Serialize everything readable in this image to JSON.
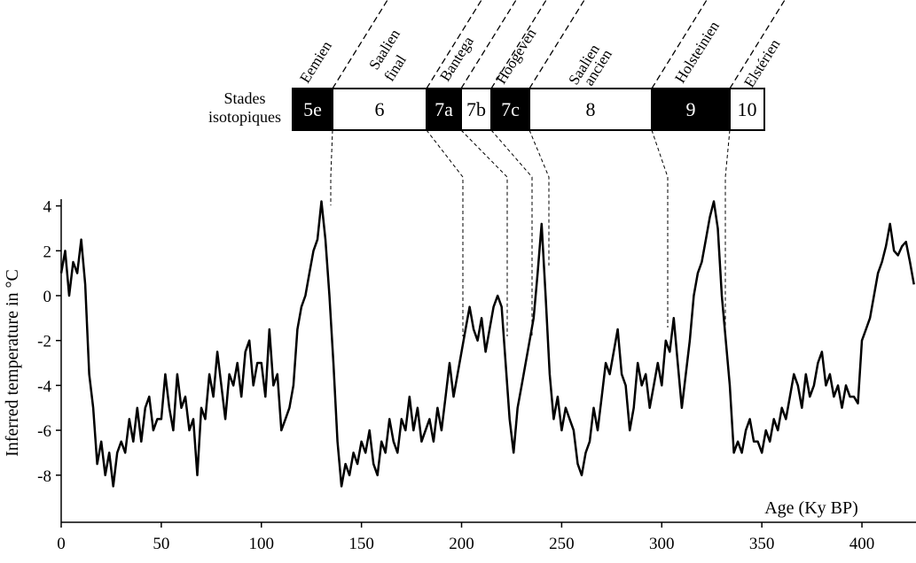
{
  "chart_data": {
    "type": "line",
    "y_label": "Inferred temperature in °C",
    "x_label": "Age (Ky BP)",
    "xlim": [
      0,
      427
    ],
    "xticks": [
      0,
      50,
      100,
      150,
      200,
      250,
      300,
      350,
      400
    ],
    "ylim": [
      -10.1,
      4.3
    ],
    "yticks": [
      4,
      2,
      0,
      -2,
      -4,
      -6,
      -8
    ],
    "grid": false,
    "x": [
      0,
      2,
      4,
      6,
      8,
      10,
      12,
      14,
      16,
      18,
      20,
      22,
      24,
      26,
      28,
      30,
      32,
      34,
      36,
      38,
      40,
      42,
      44,
      46,
      48,
      50,
      52,
      54,
      56,
      58,
      60,
      62,
      64,
      66,
      68,
      70,
      72,
      74,
      76,
      78,
      80,
      82,
      84,
      86,
      88,
      90,
      92,
      94,
      96,
      98,
      100,
      102,
      104,
      106,
      108,
      110,
      112,
      114,
      116,
      118,
      120,
      122,
      124,
      126,
      128,
      130,
      132,
      134,
      136,
      138,
      140,
      142,
      144,
      146,
      148,
      150,
      152,
      154,
      156,
      158,
      160,
      162,
      164,
      166,
      168,
      170,
      172,
      174,
      176,
      178,
      180,
      182,
      184,
      186,
      188,
      190,
      192,
      194,
      196,
      198,
      200,
      202,
      204,
      206,
      208,
      210,
      212,
      214,
      216,
      218,
      220,
      222,
      224,
      226,
      228,
      230,
      232,
      234,
      236,
      238,
      240,
      242,
      244,
      246,
      248,
      250,
      252,
      254,
      256,
      258,
      260,
      262,
      264,
      266,
      268,
      270,
      272,
      274,
      276,
      278,
      280,
      282,
      284,
      286,
      288,
      290,
      292,
      294,
      296,
      298,
      300,
      302,
      304,
      306,
      308,
      310,
      312,
      314,
      316,
      318,
      320,
      322,
      324,
      326,
      328,
      330,
      332,
      334,
      336,
      338,
      340,
      342,
      344,
      346,
      348,
      350,
      352,
      354,
      356,
      358,
      360,
      362,
      364,
      366,
      368,
      370,
      372,
      374,
      376,
      378,
      380,
      382,
      384,
      386,
      388,
      390,
      392,
      394,
      396,
      398,
      400,
      402,
      404,
      406,
      408,
      410,
      412,
      414,
      416,
      418,
      420,
      422,
      424,
      426
    ],
    "series": [
      {
        "color": "#000000",
        "values": [
          1,
          2,
          0,
          1.5,
          1,
          2.5,
          0.5,
          -3.5,
          -5,
          -7.5,
          -6.5,
          -8,
          -7,
          -8.5,
          -7,
          -6.5,
          -7,
          -5.5,
          -6.5,
          -5,
          -6.5,
          -5,
          -4.5,
          -6,
          -5.5,
          -5.5,
          -3.5,
          -5,
          -6,
          -3.5,
          -5,
          -4.5,
          -6,
          -5.5,
          -8,
          -5,
          -5.5,
          -3.5,
          -4.5,
          -2.5,
          -4,
          -5.5,
          -3.5,
          -4,
          -3,
          -4.5,
          -2.5,
          -2,
          -4,
          -3,
          -3,
          -4.5,
          -1.5,
          -4,
          -3.5,
          -6,
          -5.5,
          -5,
          -4,
          -1.5,
          -0.5,
          0,
          1,
          2,
          2.5,
          4.2,
          2.5,
          0,
          -3,
          -6.5,
          -8.5,
          -7.5,
          -8,
          -7,
          -7.5,
          -6.5,
          -7,
          -6,
          -7.5,
          -8,
          -6.5,
          -7,
          -5.5,
          -6.5,
          -7,
          -5.5,
          -6,
          -4.5,
          -6,
          -5,
          -6.5,
          -6,
          -5.5,
          -6.5,
          -5,
          -6,
          -4.5,
          -3,
          -4.5,
          -3.5,
          -2.5,
          -1.5,
          -0.5,
          -1.5,
          -2,
          -1,
          -2.5,
          -1.5,
          -0.5,
          0,
          -0.5,
          -3,
          -5.5,
          -7,
          -5,
          -4,
          -3,
          -2,
          -1,
          1,
          3.2,
          0,
          -3.5,
          -5.5,
          -4.5,
          -6,
          -5,
          -5.5,
          -6,
          -7.5,
          -8,
          -7,
          -6.5,
          -5,
          -6,
          -4.5,
          -3,
          -3.5,
          -2.5,
          -1.5,
          -3.5,
          -4,
          -6,
          -5,
          -3,
          -4,
          -3.5,
          -5,
          -4,
          -3,
          -4,
          -2,
          -2.5,
          -1,
          -3,
          -5,
          -3.5,
          -2,
          0,
          1,
          1.5,
          2.5,
          3.5,
          4.2,
          3,
          0,
          -2,
          -4,
          -7,
          -6.5,
          -7,
          -6,
          -5.5,
          -6.5,
          -6.5,
          -7,
          -6,
          -6.5,
          -5.5,
          -6,
          -5,
          -5.5,
          -4.5,
          -3.5,
          -4,
          -5,
          -3.5,
          -4.5,
          -4,
          -3,
          -2.5,
          -4,
          -3.5,
          -4.5,
          -4,
          -5,
          -4,
          -4.5,
          -4.5,
          -4.8,
          -2,
          -1.5,
          -1,
          0,
          1,
          1.5,
          2.2,
          3.2,
          2,
          1.8,
          2.2,
          2.4,
          1.5,
          0.5
        ]
      }
    ],
    "stage_band": {
      "label": [
        "Stades",
        "isotopiques"
      ],
      "stages": [
        {
          "label": "5e",
          "color": "#000000"
        },
        {
          "label": "6",
          "color": "#ffffff"
        },
        {
          "label": "7a",
          "color": "#000000"
        },
        {
          "label": "7b",
          "color": "#ffffff"
        },
        {
          "label": "7c",
          "color": "#000000"
        },
        {
          "label": "8",
          "color": "#ffffff"
        },
        {
          "label": "9",
          "color": "#000000"
        },
        {
          "label": "10",
          "color": "#ffffff"
        }
      ],
      "names": [
        [
          "Eemien"
        ],
        [
          "Saalien",
          "final"
        ],
        [
          "Bantega"
        ],
        [
          "Hoogeven"
        ],
        [
          "Saalien",
          "ancien"
        ],
        [
          "Holsteinien"
        ],
        [
          "Elstérien"
        ]
      ]
    }
  }
}
